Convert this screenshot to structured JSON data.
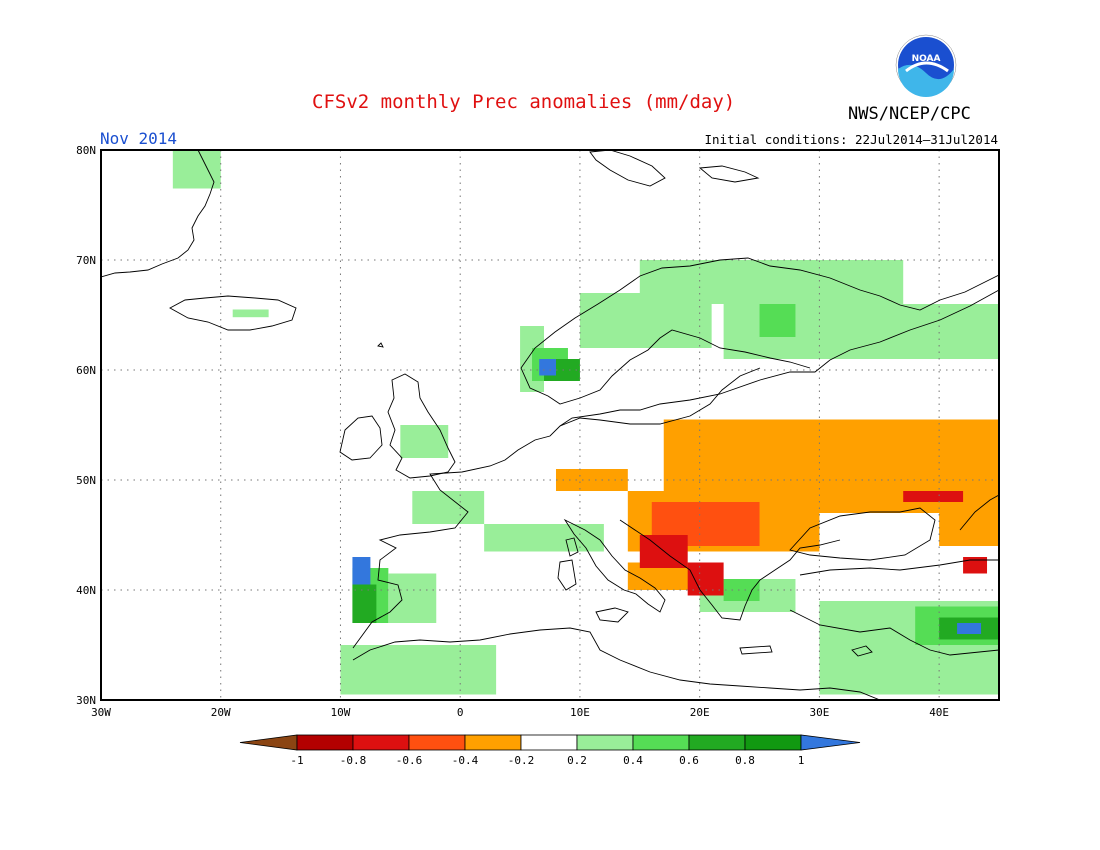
{
  "header": {
    "title": "CFSv2 monthly Prec anomalies (mm/day)",
    "agency": "NWS/NCEP/CPC",
    "month": "Nov 2014",
    "initial_conditions": "Initial conditions: 22Jul2014–31Jul2014"
  },
  "logo": {
    "label": "NOAA"
  },
  "map": {
    "lon_range": [
      -30,
      45
    ],
    "lat_range": [
      30,
      80
    ],
    "lon_ticks": [
      "30W",
      "20W",
      "10W",
      "0",
      "10E",
      "20E",
      "30E",
      "40E"
    ],
    "lat_ticks": [
      "30N",
      "40N",
      "50N",
      "60N",
      "70N",
      "80N"
    ],
    "anomaly_regions": [
      {
        "level": "0.2 to 0.4",
        "color": "#99ee99",
        "lon": [
          -24,
          -20
        ],
        "lat": [
          76.5,
          80
        ]
      },
      {
        "level": "0.2 to 0.4",
        "color": "#99ee99",
        "lon": [
          -19,
          -16
        ],
        "lat": [
          64.8,
          65.5
        ]
      },
      {
        "level": "0.2 to 0.4",
        "color": "#99ee99",
        "lon": [
          10,
          21
        ],
        "lat": [
          62,
          67
        ]
      },
      {
        "level": "0.2 to 0.4",
        "color": "#99ee99",
        "lon": [
          15,
          37
        ],
        "lat": [
          66,
          70
        ]
      },
      {
        "level": "0.2 to 0.4",
        "color": "#99ee99",
        "lon": [
          22,
          45
        ],
        "lat": [
          61,
          66
        ]
      },
      {
        "level": "0.4 to 0.6",
        "color": "#55dd55",
        "lon": [
          25,
          28
        ],
        "lat": [
          63,
          66
        ]
      },
      {
        "level": "0.2 to 0.4",
        "color": "#99ee99",
        "lon": [
          5,
          7
        ],
        "lat": [
          58,
          64
        ]
      },
      {
        "level": "0.4 to 0.6",
        "color": "#55dd55",
        "lon": [
          6,
          9
        ],
        "lat": [
          59,
          62
        ]
      },
      {
        "level": "0.6 to 0.8",
        "color": "#22aa22",
        "lon": [
          7,
          10
        ],
        "lat": [
          59,
          61
        ]
      },
      {
        "level": "> 1",
        "color": "#3377dd",
        "lon": [
          6.6,
          8
        ],
        "lat": [
          59.5,
          61
        ]
      },
      {
        "level": "0.2 to 0.4",
        "color": "#99ee99",
        "lon": [
          -5,
          -1
        ],
        "lat": [
          52,
          55
        ]
      },
      {
        "level": "0.2 to 0.4",
        "color": "#99ee99",
        "lon": [
          -4,
          2
        ],
        "lat": [
          46,
          49
        ]
      },
      {
        "level": "0.2 to 0.4",
        "color": "#99ee99",
        "lon": [
          2,
          12
        ],
        "lat": [
          43.5,
          46
        ]
      },
      {
        "level": "0.4 to 0.6",
        "color": "#55dd55",
        "lon": [
          -9,
          -6
        ],
        "lat": [
          37,
          42
        ]
      },
      {
        "level": "0.2 to 0.4",
        "color": "#99ee99",
        "lon": [
          -6,
          -2
        ],
        "lat": [
          37,
          41.5
        ]
      },
      {
        "level": "> 1",
        "color": "#3377dd",
        "lon": [
          -9,
          -7.5
        ],
        "lat": [
          40.5,
          43
        ]
      },
      {
        "level": "0.6 to 0.8",
        "color": "#22aa22",
        "lon": [
          -9,
          -7
        ],
        "lat": [
          37,
          40.5
        ]
      },
      {
        "level": "0.2 to 0.4",
        "color": "#99ee99",
        "lon": [
          -10,
          3
        ],
        "lat": [
          30.5,
          35
        ]
      },
      {
        "level": "0.2 to 0.4",
        "color": "#99ee99",
        "lon": [
          20,
          28
        ],
        "lat": [
          38,
          41
        ]
      },
      {
        "level": "0.4 to 0.6",
        "color": "#55dd55",
        "lon": [
          22,
          25
        ],
        "lat": [
          39,
          41
        ]
      },
      {
        "level": "0.2 to 0.4",
        "color": "#99ee99",
        "lon": [
          30,
          45
        ],
        "lat": [
          30.5,
          39
        ]
      },
      {
        "level": "0.4 to 0.6",
        "color": "#55dd55",
        "lon": [
          38,
          45
        ],
        "lat": [
          35,
          38.5
        ]
      },
      {
        "level": "0.6 to 0.8",
        "color": "#22aa22",
        "lon": [
          40,
          45
        ],
        "lat": [
          35.5,
          37.5
        ]
      },
      {
        "level": "> 1",
        "color": "#3377dd",
        "lon": [
          41.5,
          43.5
        ],
        "lat": [
          36,
          37
        ]
      },
      {
        "level": "-0.4 to -0.2",
        "color": "#ffa000",
        "lon": [
          8,
          14
        ],
        "lat": [
          49,
          51
        ]
      },
      {
        "level": "-0.4 to -0.2",
        "color": "#ffa000",
        "lon": [
          17,
          45
        ],
        "lat": [
          47,
          55.5
        ]
      },
      {
        "level": "-0.4 to -0.2",
        "color": "#ffa000",
        "lon": [
          14,
          30
        ],
        "lat": [
          43.5,
          49
        ]
      },
      {
        "level": "-0.4 to -0.2",
        "color": "#ffa000",
        "lon": [
          40,
          45
        ],
        "lat": [
          44,
          49
        ]
      },
      {
        "level": "-0.4 to -0.2",
        "color": "#ffa000",
        "lon": [
          14,
          20
        ],
        "lat": [
          40,
          42.5
        ]
      },
      {
        "level": "-0.6 to -0.4",
        "color": "#ff5010",
        "lon": [
          16,
          25
        ],
        "lat": [
          44,
          48
        ]
      },
      {
        "level": "-0.8 to -0.6",
        "color": "#dd1010",
        "lon": [
          15,
          19
        ],
        "lat": [
          42,
          45
        ]
      },
      {
        "level": "-0.8 to -0.6",
        "color": "#dd1010",
        "lon": [
          19,
          22
        ],
        "lat": [
          39.5,
          42.5
        ]
      },
      {
        "level": "-0.8 to -0.6",
        "color": "#dd1010",
        "lon": [
          37,
          42
        ],
        "lat": [
          48,
          49
        ]
      },
      {
        "level": "-0.8 to -0.6",
        "color": "#dd1010",
        "lon": [
          42,
          44
        ],
        "lat": [
          41.5,
          43
        ]
      }
    ]
  },
  "colorbar": {
    "boundaries": [
      "-1",
      "-0.8",
      "-0.6",
      "-0.4",
      "-0.2",
      "0.2",
      "0.4",
      "0.6",
      "0.8",
      "1"
    ],
    "colors": [
      "#8b4513",
      "#b30000",
      "#dd1010",
      "#ff5010",
      "#ffa000",
      "#ffffff",
      "#99ee99",
      "#55dd55",
      "#22aa22",
      "#119911",
      "#3377dd"
    ]
  }
}
